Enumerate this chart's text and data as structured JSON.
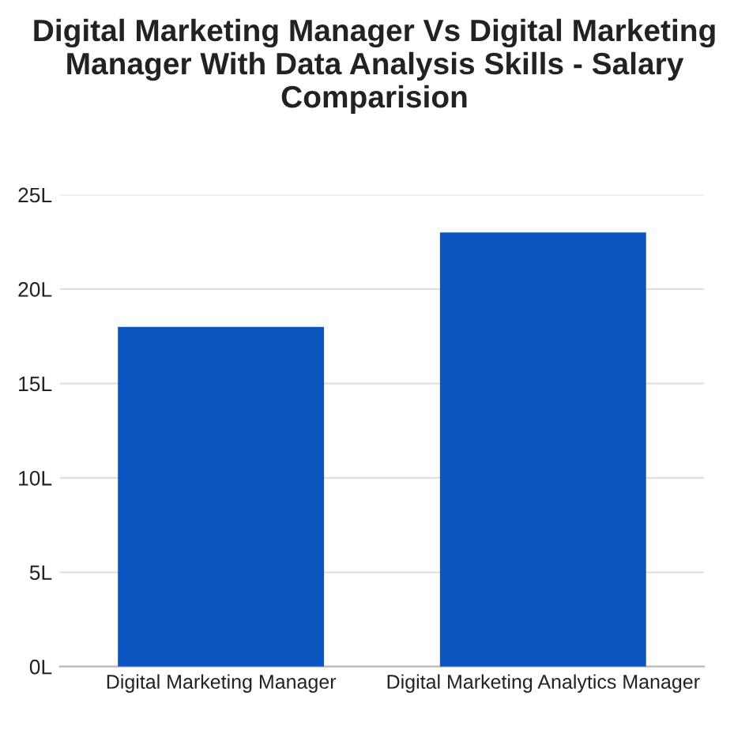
{
  "chart_data": {
    "type": "bar",
    "title": "Digital Marketing Manager Vs Digital Marketing Manager With Data Analysis Skills - Salary Comparision",
    "categories": [
      "Digital Marketing Manager",
      "Digital Marketing Analytics Manager"
    ],
    "values": [
      18,
      23
    ],
    "color": "#0a55c0",
    "ylim": [
      0,
      25
    ],
    "yticks": [
      {
        "value": 0,
        "label": "0L"
      },
      {
        "value": 5,
        "label": "5L"
      },
      {
        "value": 10,
        "label": "10L"
      },
      {
        "value": 15,
        "label": "15L"
      },
      {
        "value": 20,
        "label": "20L"
      },
      {
        "value": 25,
        "label": "25L"
      }
    ],
    "grid": "y"
  }
}
